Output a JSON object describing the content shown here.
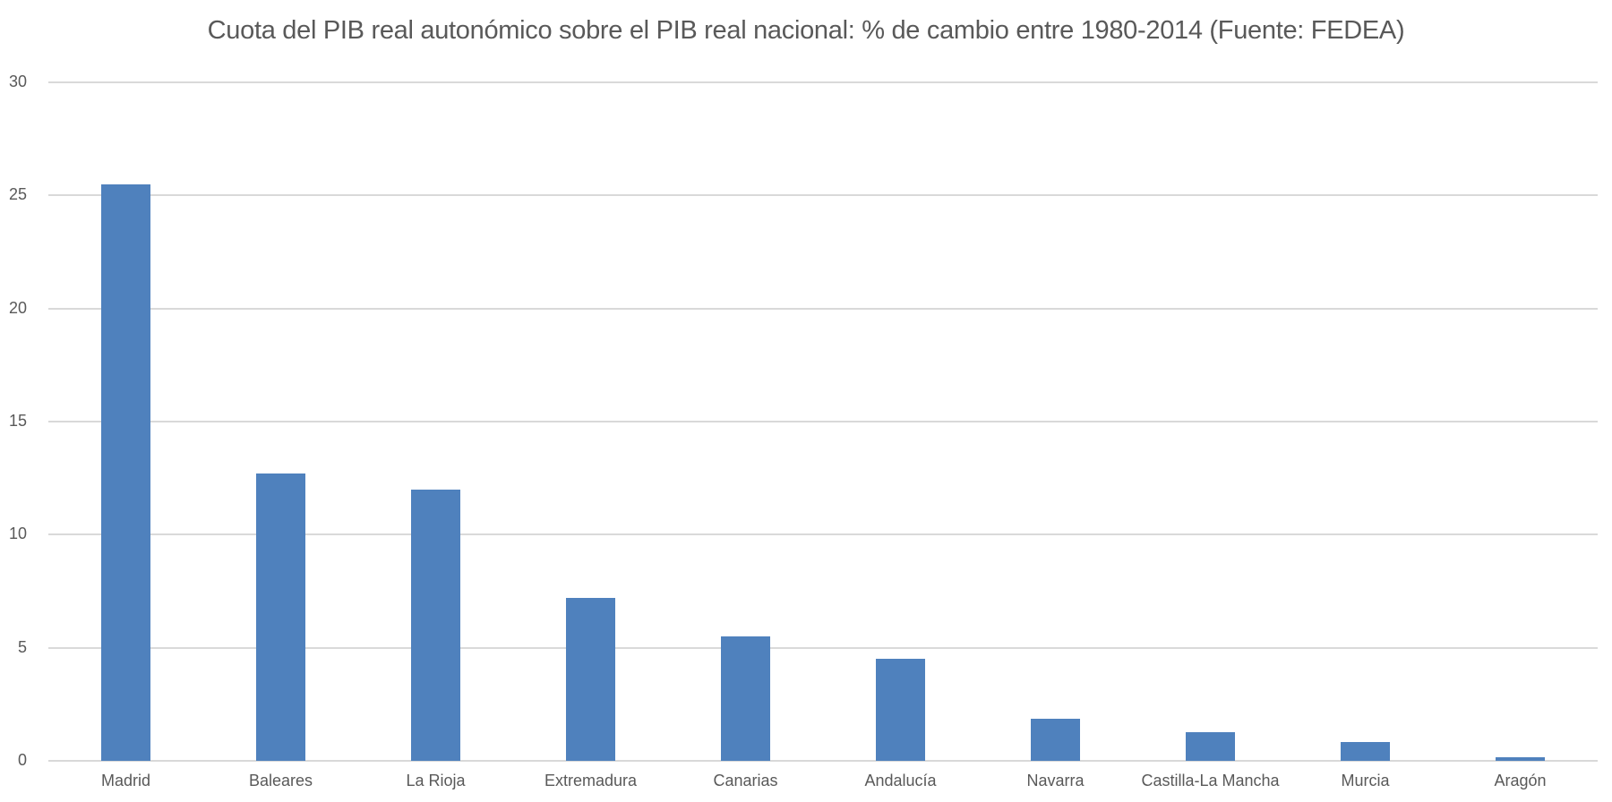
{
  "chart_data": {
    "type": "bar",
    "title": "Cuota del PIB real autonómico sobre el PIB real nacional: % de cambio entre 1980-2014 (Fuente: FEDEA)",
    "xlabel": "",
    "ylabel": "",
    "categories": [
      "Madrid",
      "Baleares",
      "La Rioja",
      "Extremadura",
      "Canarias",
      "Andalucía",
      "Navarra",
      "Castilla-La Mancha",
      "Murcia",
      "Aragón"
    ],
    "values": [
      25.5,
      12.7,
      12.0,
      7.2,
      5.5,
      4.5,
      1.85,
      1.25,
      0.85,
      0.15
    ],
    "ylim": [
      0,
      30
    ],
    "yticks": [
      0,
      5,
      10,
      15,
      20,
      25,
      30
    ],
    "grid": true,
    "legend": null,
    "bar_color": "#4f81bd",
    "grid_color": "#d9d9d9"
  }
}
